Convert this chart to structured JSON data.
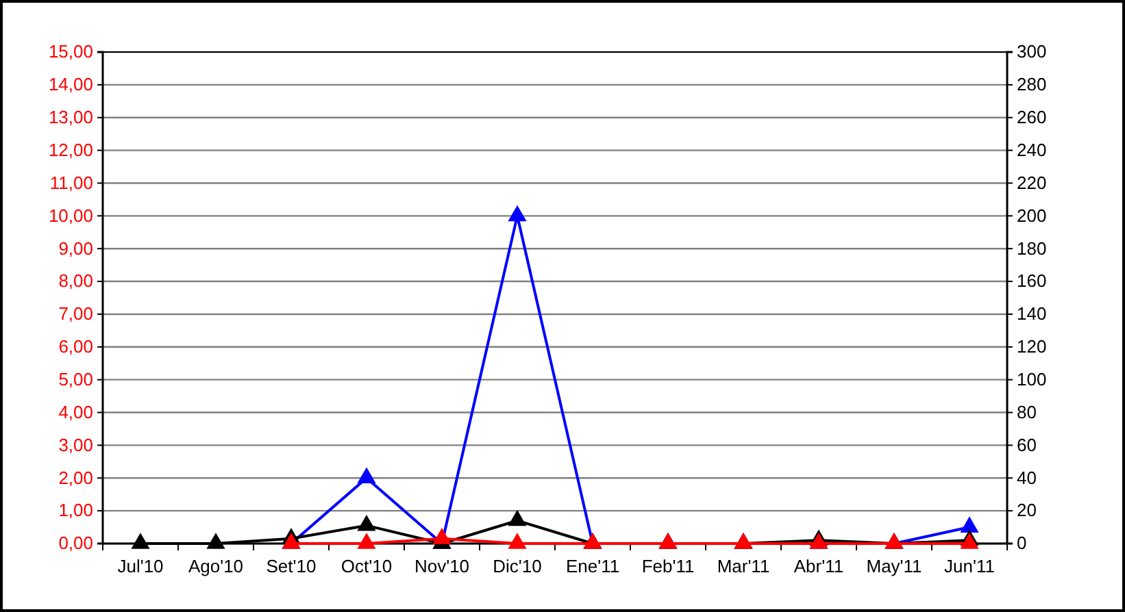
{
  "chart_data": {
    "type": "line",
    "categories": [
      "Jul'10",
      "Ago'10",
      "Set'10",
      "Oct'10",
      "Nov'10",
      "Dic'10",
      "Ene'11",
      "Feb'11",
      "Mar'11",
      "Abr'11",
      "May'11",
      "Jun'11"
    ],
    "series": [
      {
        "color": "#0000ff",
        "axis": "y2",
        "values": [
          null,
          null,
          0,
          40,
          0,
          200,
          0,
          0,
          0,
          0,
          0,
          10
        ]
      },
      {
        "color": "#000000",
        "axis": "y2",
        "values": [
          0,
          0,
          3,
          11,
          0,
          14,
          0,
          0,
          0,
          2,
          0,
          2
        ]
      },
      {
        "color": "#ff0000",
        "axis": "y",
        "values": [
          null,
          null,
          0,
          0,
          0.15,
          0,
          0,
          0,
          0,
          0,
          0,
          0
        ]
      }
    ],
    "ylim": [
      0,
      15
    ],
    "yticks": [
      {
        "value": 0,
        "label": "0,00"
      },
      {
        "value": 1,
        "label": "1,00"
      },
      {
        "value": 2,
        "label": "2,00"
      },
      {
        "value": 3,
        "label": "3,00"
      },
      {
        "value": 4,
        "label": "4,00"
      },
      {
        "value": 5,
        "label": "5,00"
      },
      {
        "value": 6,
        "label": "6,00"
      },
      {
        "value": 7,
        "label": "7,00"
      },
      {
        "value": 8,
        "label": "8,00"
      },
      {
        "value": 9,
        "label": "9,00"
      },
      {
        "value": 10,
        "label": "10,00"
      },
      {
        "value": 11,
        "label": "11,00"
      },
      {
        "value": 12,
        "label": "12,00"
      },
      {
        "value": 13,
        "label": "13,00"
      },
      {
        "value": 14,
        "label": "14,00"
      },
      {
        "value": 15,
        "label": "15,00"
      }
    ],
    "y2lim": [
      0,
      300
    ],
    "y2ticks": [
      0,
      20,
      40,
      60,
      80,
      100,
      120,
      140,
      160,
      180,
      200,
      220,
      240,
      260,
      280,
      300
    ],
    "grid": "y",
    "marker": "triangle",
    "line_style": "solid"
  }
}
